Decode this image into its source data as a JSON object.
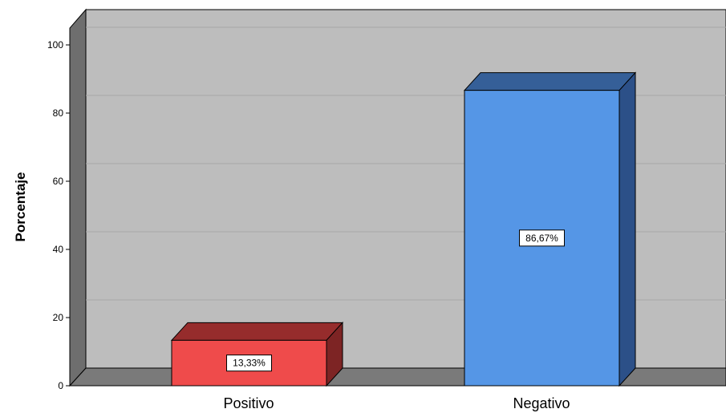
{
  "chart_data": {
    "type": "bar",
    "categories": [
      "Positivo",
      "Negativo"
    ],
    "values": [
      13.33,
      86.67
    ],
    "data_labels": [
      "13,33%",
      "86,67%"
    ],
    "ylabel": "Porcentaje",
    "xlabel": "",
    "ylim": [
      0,
      100
    ],
    "yticks": [
      "0",
      "20",
      "40",
      "60",
      "80",
      "100"
    ],
    "grid": true,
    "three_d": true,
    "colors": {
      "bar_fronts": [
        "#ef4b4b",
        "#5596e6"
      ],
      "bar_tops": [
        "#962c2c",
        "#355f98"
      ],
      "bar_sides": [
        "#7d2424",
        "#2c5088"
      ],
      "back_wall": "#bdbdbd",
      "side_wall": "#6e6e6e",
      "floor": "#7a7a7a",
      "gridline": "#a8a8a8"
    }
  }
}
